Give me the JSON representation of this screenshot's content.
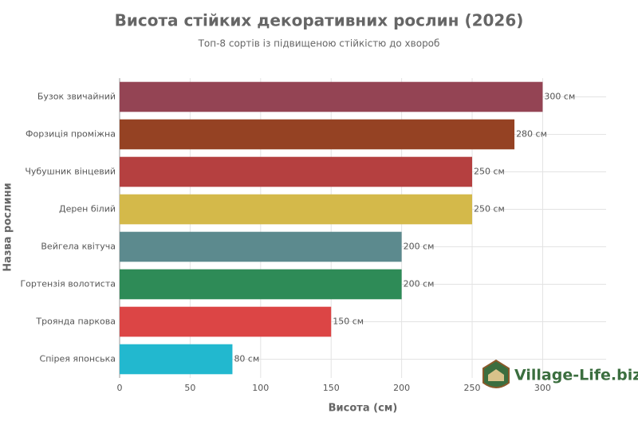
{
  "chart_data": {
    "type": "barh",
    "title": "Висота стійких декоративних рослин (2026)",
    "subtitle": "Топ-8 сортів із підвищеною стійкістю до хвороб",
    "x_label": "Висота (см)",
    "y_label": "Назва рослини",
    "categories": [
      "Бузок звичайний",
      "Форзиція проміжна",
      "Чубушник вінцевий",
      "Дерен білий",
      "Вейгела квітуча",
      "Гортензія волотиста",
      "Троянда паркова",
      "Спірея японська"
    ],
    "values": [
      300,
      280,
      250,
      250,
      200,
      200,
      150,
      80
    ],
    "value_labels": [
      "300 см",
      "280 см",
      "250 см",
      "250 см",
      "200 см",
      "200 см",
      "150 см",
      "80 см"
    ],
    "colors": [
      "#944454",
      "#954223",
      "#b54040",
      "#d4b94a",
      "#5c8a8e",
      "#2e8b57",
      "#dc4545",
      "#22b8cf"
    ],
    "xlim": [
      0,
      345
    ],
    "xticks": [
      0,
      50,
      100,
      150,
      200,
      250,
      300
    ],
    "grid": true
  },
  "watermark": "Village-Life.biz"
}
